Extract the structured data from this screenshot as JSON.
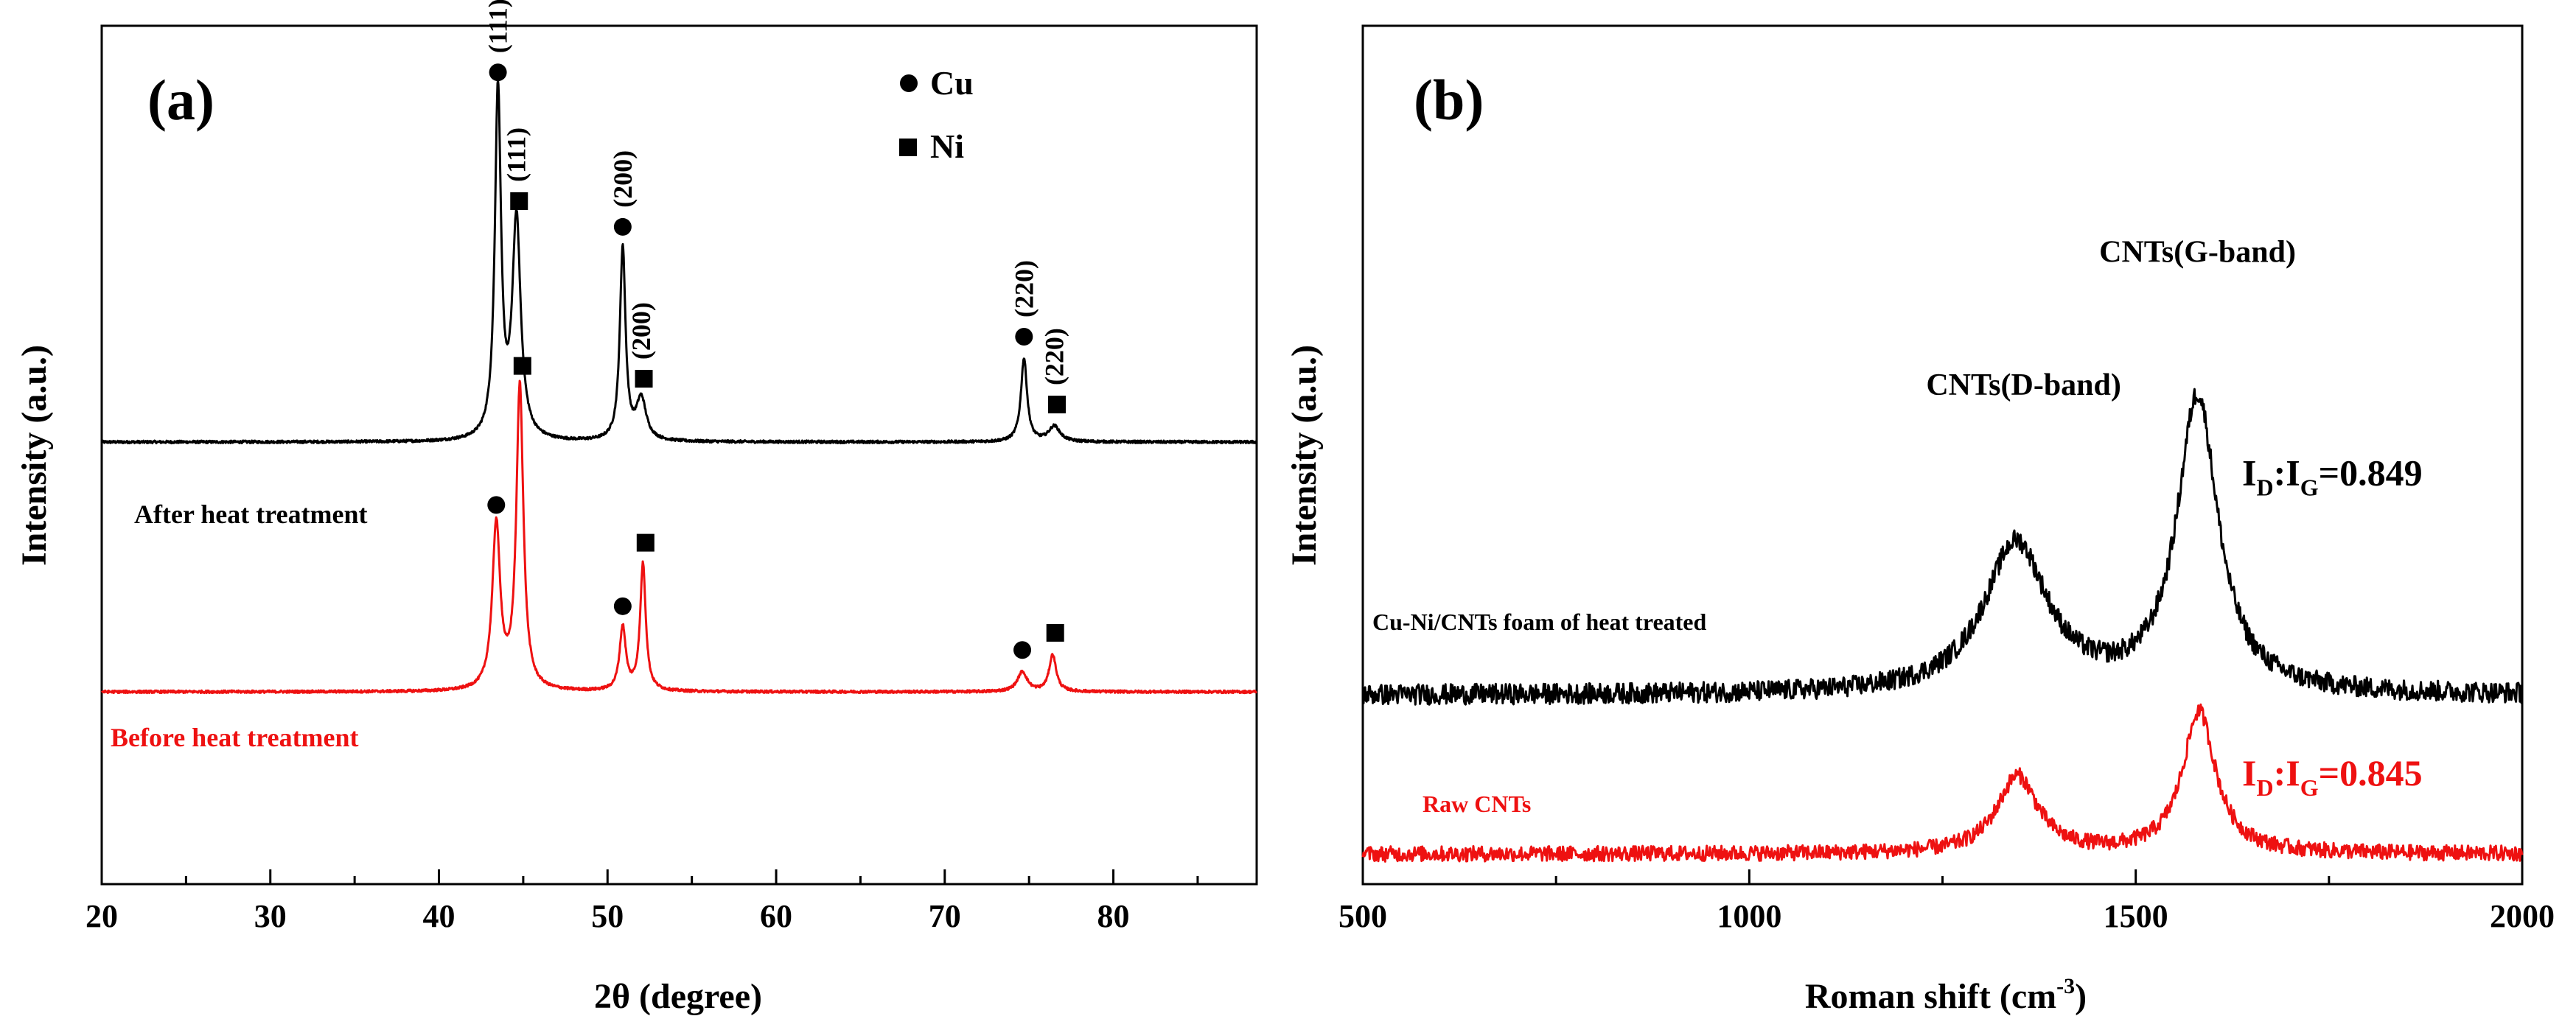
{
  "chart_data": [
    {
      "type": "line",
      "panel_label": "(a)",
      "xlabel": "2θ (degree)",
      "ylabel": "Intensity (a.u.)",
      "xlim": [
        20,
        88.5
      ],
      "ylim": [
        0,
        1
      ],
      "xticks": [
        20,
        30,
        40,
        50,
        60,
        70,
        80
      ],
      "grid": false,
      "legend_position": "top-right",
      "legend": [
        {
          "marker": "circle",
          "label": "Cu"
        },
        {
          "marker": "square",
          "label": "Ni"
        }
      ],
      "series": [
        {
          "name": "After heat treatment",
          "label": "After heat treatment",
          "color": "#000000",
          "baseline": 0.515,
          "noise": 0.0015,
          "peaks": [
            {
              "x": 43.5,
              "height": 0.405,
              "width": 0.22,
              "phase": "Cu",
              "hkl": "(111)"
            },
            {
              "x": 44.6,
              "height": 0.255,
              "width": 0.3,
              "phase": "Ni",
              "hkl": "(111)"
            },
            {
              "x": 50.9,
              "height": 0.225,
              "width": 0.2,
              "phase": "Cu",
              "hkl": "(200)"
            },
            {
              "x": 52.0,
              "height": 0.048,
              "width": 0.35,
              "phase": "Ni",
              "hkl": "(200)"
            },
            {
              "x": 74.7,
              "height": 0.097,
              "width": 0.22,
              "phase": "Cu",
              "hkl": "(220)"
            },
            {
              "x": 76.5,
              "height": 0.018,
              "width": 0.4,
              "phase": "Ni",
              "hkl": "(220)"
            }
          ]
        },
        {
          "name": "Before heat treatment",
          "label": "Before heat treatment",
          "color": "#ee1111",
          "baseline": 0.224,
          "noise": 0.0015,
          "peaks": [
            {
              "x": 43.4,
              "height": 0.192,
              "width": 0.28,
              "phase": "Cu"
            },
            {
              "x": 44.8,
              "height": 0.354,
              "width": 0.25,
              "phase": "Ni"
            },
            {
              "x": 50.9,
              "height": 0.074,
              "width": 0.22,
              "phase": "Cu"
            },
            {
              "x": 52.1,
              "height": 0.148,
              "width": 0.2,
              "phase": "Ni"
            },
            {
              "x": 74.6,
              "height": 0.023,
              "width": 0.35,
              "phase": "Cu"
            },
            {
              "x": 76.4,
              "height": 0.043,
              "width": 0.25,
              "phase": "Ni"
            }
          ]
        }
      ]
    },
    {
      "type": "line",
      "panel_label": "(b)",
      "xlabel": "Roman shift (cm",
      "xlabel_sup": "-3",
      "xlabel_end": ")",
      "ylabel": "Intensity (a.u.)",
      "xlim": [
        500,
        2000
      ],
      "ylim": [
        0,
        1
      ],
      "xticks": [
        500,
        1000,
        1500,
        2000
      ],
      "grid": false,
      "annotations": [
        {
          "text": "CNTs(D-band)",
          "x": 1355,
          "y": 0.57
        },
        {
          "text": "CNTs(G-band)",
          "x": 1580,
          "y": 0.725
        }
      ],
      "ratios": [
        {
          "base": "I",
          "sub1": "D",
          "mid": ":I",
          "sub2": "G",
          "value": "=0.849",
          "color": "#000000",
          "y": 0.465
        },
        {
          "base": "I",
          "sub1": "D",
          "mid": ":I",
          "sub2": "G",
          "value": "=0.845",
          "color": "#ee1111",
          "y": 0.115
        }
      ],
      "series": [
        {
          "name": "Cu-Ni/CNTs foam of heat treated",
          "label": "Cu-Ni/CNTs foam of heat treated",
          "color": "#000000",
          "baseline": 0.22,
          "noise": 0.012,
          "peaks": [
            {
              "x": 1345,
              "height": 0.175,
              "width": 50
            },
            {
              "x": 1580,
              "height": 0.345,
              "width": 32
            }
          ]
        },
        {
          "name": "Raw CNTs",
          "label": "Raw CNTs",
          "color": "#ee1111",
          "baseline": 0.035,
          "noise": 0.009,
          "peaks": [
            {
              "x": 1347,
              "height": 0.09,
              "width": 32
            },
            {
              "x": 1582,
              "height": 0.165,
              "width": 26
            }
          ]
        }
      ]
    }
  ]
}
